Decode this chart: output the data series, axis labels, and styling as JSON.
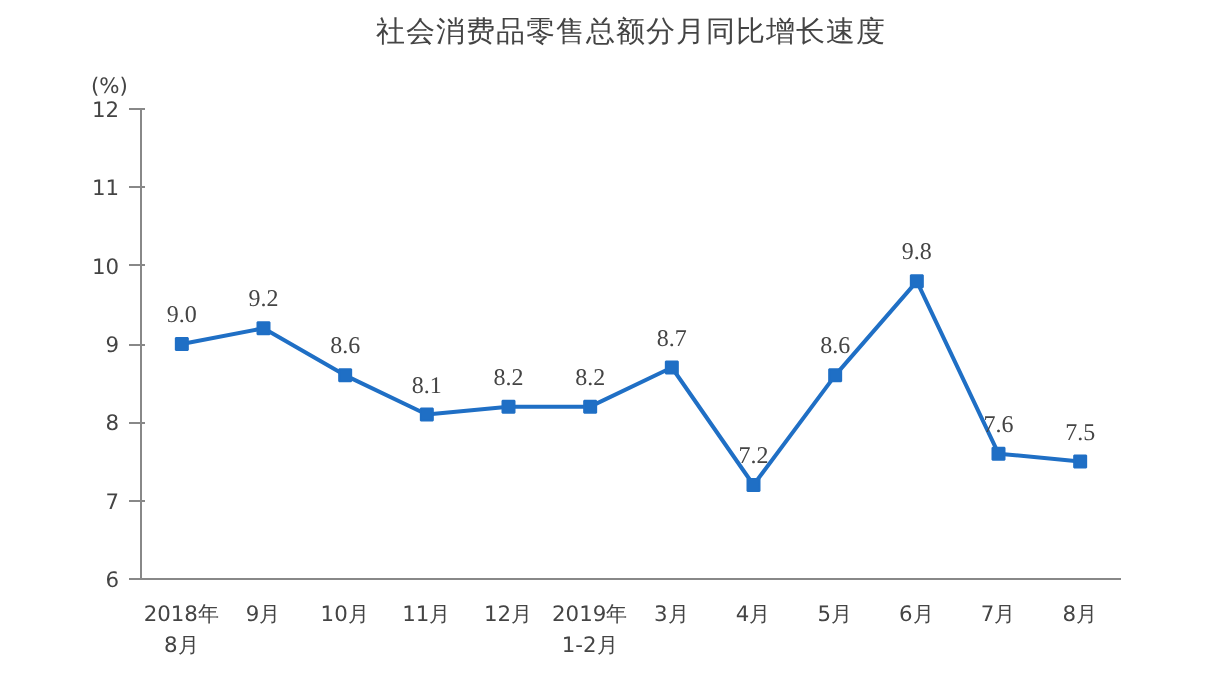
{
  "chart_data": {
    "type": "line",
    "title": "社会消费品零售总额分月同比增长速度",
    "ylabel": "(%)",
    "categories": [
      "2018年\n8月",
      "9月",
      "10月",
      "11月",
      "12月",
      "2019年\n1-2月",
      "3月",
      "4月",
      "5月",
      "6月",
      "7月",
      "8月"
    ],
    "series": [
      {
        "color": "#1f6fc5",
        "values": [
          9.0,
          9.2,
          8.6,
          8.1,
          8.2,
          8.2,
          8.7,
          7.2,
          8.6,
          9.8,
          7.6,
          7.5
        ],
        "value_labels": [
          "9.0",
          "9.2",
          "8.6",
          "8.1",
          "8.2",
          "8.2",
          "8.7",
          "7.2",
          "8.6",
          "9.8",
          "7.6",
          "7.5"
        ]
      }
    ],
    "ylim": [
      6,
      12
    ],
    "yticks": [
      6,
      7,
      8,
      9,
      10,
      11,
      12
    ],
    "grid": false,
    "marker": "square",
    "line_style": "solid"
  }
}
